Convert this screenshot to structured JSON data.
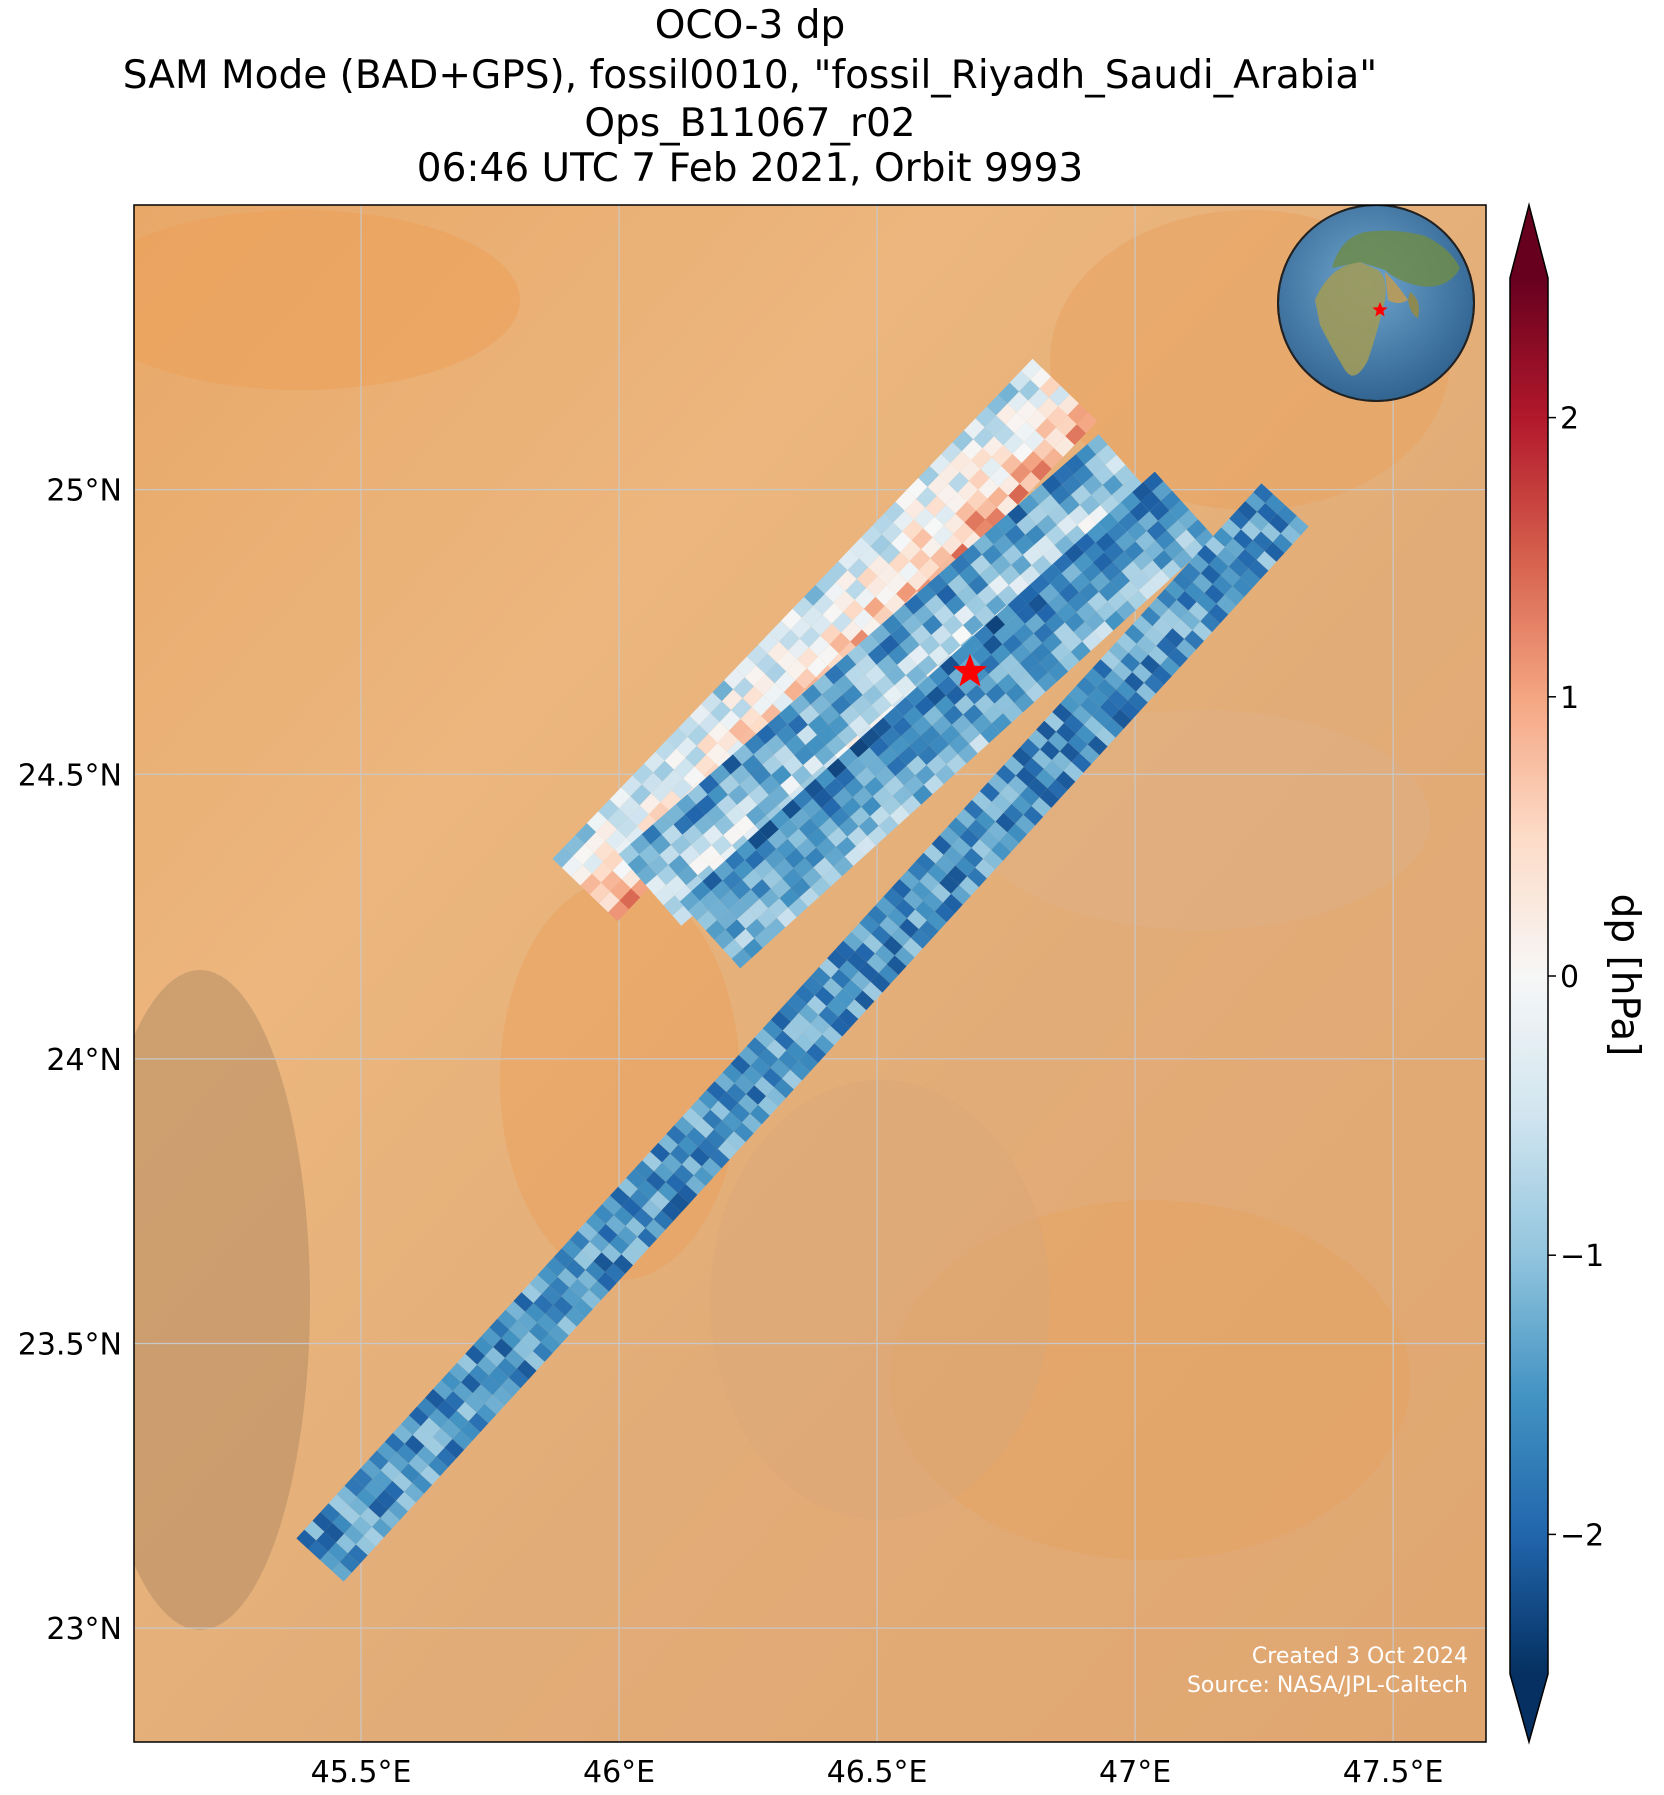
{
  "title": {
    "line1": "OCO-3 dp",
    "line2": "SAM Mode (BAD+GPS), fossil0010, \"fossil_Riyadh_Saudi_Arabia\"",
    "line3": "Ops_B11067_r02",
    "line4": "06:46 UTC 7 Feb 2021, Orbit 9993"
  },
  "map": {
    "lon_ticks": [
      {
        "value": 45.5,
        "label": "45.5°E"
      },
      {
        "value": 46.0,
        "label": "46°E"
      },
      {
        "value": 46.5,
        "label": "46.5°E"
      },
      {
        "value": 47.0,
        "label": "47°E"
      },
      {
        "value": 47.5,
        "label": "47.5°E"
      }
    ],
    "lat_ticks": [
      {
        "value": 23.0,
        "label": "23°N"
      },
      {
        "value": 23.5,
        "label": "23.5°N"
      },
      {
        "value": 24.0,
        "label": "24°N"
      },
      {
        "value": 24.5,
        "label": "24.5°N"
      },
      {
        "value": 25.0,
        "label": "25°N"
      }
    ],
    "lon_range": [
      45.06,
      47.68
    ],
    "lat_range": [
      22.8,
      25.5
    ],
    "target": {
      "name": "fossil_Riyadh_Saudi_Arabia",
      "lon": 46.68,
      "lat": 24.68,
      "marker_color": "#ff0000"
    },
    "credit_line1": "Created 3 Oct 2024",
    "credit_line2": "Source: NASA/JPL-Caltech",
    "globe_inset": "globe-icon"
  },
  "colorbar": {
    "label": "dp [hPa]",
    "colormap": "RdBu_r",
    "range": [
      -2.5,
      2.5
    ],
    "extend": "both",
    "ticks": [
      {
        "value": 2,
        "label": "2"
      },
      {
        "value": 1,
        "label": "1"
      },
      {
        "value": 0,
        "label": "0"
      },
      {
        "value": -1,
        "label": "−1"
      },
      {
        "value": -2,
        "label": "−2"
      }
    ],
    "stops": [
      "#053061",
      "#2166ac",
      "#4393c3",
      "#92c5de",
      "#d1e5f0",
      "#f7f7f7",
      "#fddbc7",
      "#f4a582",
      "#d6604d",
      "#b2182b",
      "#67001f"
    ]
  }
}
